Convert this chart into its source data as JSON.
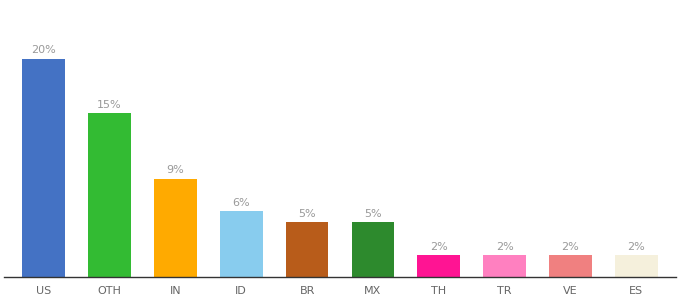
{
  "categories": [
    "US",
    "OTH",
    "IN",
    "ID",
    "BR",
    "MX",
    "TH",
    "TR",
    "VE",
    "ES"
  ],
  "values": [
    20,
    15,
    9,
    6,
    5,
    5,
    2,
    2,
    2,
    2
  ],
  "bar_colors": [
    "#4472c4",
    "#33bb33",
    "#ffaa00",
    "#88ccee",
    "#b85c1a",
    "#2d8a2d",
    "#ff1493",
    "#ff80c0",
    "#f08080",
    "#f5f0dc"
  ],
  "ylim": [
    0,
    25
  ],
  "background_color": "#ffffff",
  "label_color": "#999999",
  "label_fontsize": 8,
  "tick_fontsize": 8,
  "bar_width": 0.65
}
